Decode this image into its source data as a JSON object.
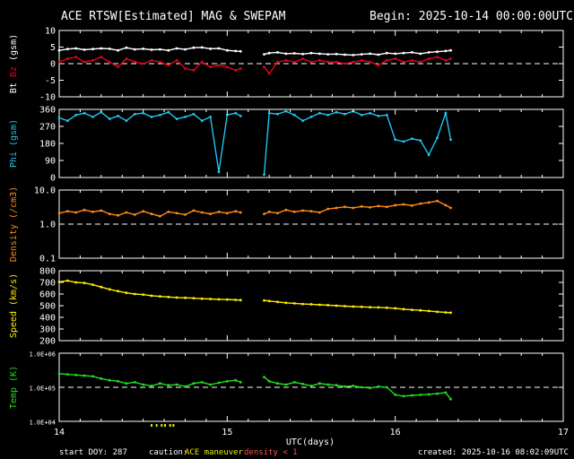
{
  "header": {
    "title": "ACE RTSW[Estimated] MAG & SWEPAM",
    "begin": "Begin: 2025-10-14 00:00:00UTC"
  },
  "footer": {
    "start_doy": "start DOY: 287",
    "caution_label": "caution:",
    "caution_maneuver": "ACE maneuver",
    "caution_density": "density < 1",
    "created": "created: 2025-10-16 08:02:09UTC",
    "xaxis_label": "UTC(days)"
  },
  "colors": {
    "bt": "#ffffff",
    "bz": "#e8001c",
    "phi": "#22c4ee",
    "density": "#ff8c1a",
    "speed": "#ffee00",
    "temp": "#22dd22",
    "frame": "#ffffff",
    "maneuver": "#e8e800",
    "density_warn": "#ff5050"
  },
  "chart_data": [
    {
      "type": "line",
      "id": "mag",
      "ylabel_parts": [
        "Bt",
        "Bz",
        "(gsm)"
      ],
      "yticks": [
        "10",
        "5",
        "0",
        "-5",
        "-10"
      ],
      "ylim": [
        -10,
        10
      ],
      "x": [
        14.0,
        14.05,
        14.1,
        14.15,
        14.2,
        14.25,
        14.3,
        14.35,
        14.4,
        14.45,
        14.5,
        14.55,
        14.6,
        14.65,
        14.7,
        14.75,
        14.8,
        14.85,
        14.9,
        14.95,
        15.0,
        15.05,
        15.08,
        15.22,
        15.25,
        15.3,
        15.35,
        15.4,
        15.45,
        15.5,
        15.55,
        15.6,
        15.65,
        15.7,
        15.75,
        15.8,
        15.85,
        15.9,
        15.95,
        16.0,
        16.05,
        16.1,
        16.15,
        16.2,
        16.25,
        16.3,
        16.33
      ],
      "series": [
        {
          "name": "Bt",
          "values": [
            4.0,
            4.4,
            4.6,
            4.2,
            4.4,
            4.6,
            4.5,
            4.0,
            4.8,
            4.3,
            4.5,
            4.2,
            4.3,
            4.0,
            4.6,
            4.3,
            4.8,
            4.9,
            4.5,
            4.6,
            4.0,
            3.8,
            3.7,
            2.8,
            3.2,
            3.4,
            3.0,
            3.1,
            2.9,
            3.2,
            3.0,
            2.8,
            2.9,
            2.7,
            2.6,
            2.8,
            3.0,
            2.7,
            3.2,
            3.0,
            3.2,
            3.4,
            3.0,
            3.4,
            3.6,
            3.8,
            4.0
          ]
        },
        {
          "name": "Bz",
          "values": [
            0.5,
            1.5,
            2.0,
            0.5,
            1.0,
            2.0,
            0.5,
            -1.0,
            1.5,
            0.5,
            0.0,
            1.0,
            0.5,
            -0.5,
            1.0,
            -1.5,
            -2.0,
            0.5,
            -1.0,
            -0.5,
            -1.0,
            -2.0,
            -1.5,
            -1.0,
            -3.0,
            0.5,
            1.0,
            0.5,
            1.5,
            0.5,
            1.0,
            0.5,
            0.5,
            0.0,
            0.5,
            1.0,
            0.5,
            -0.5,
            1.0,
            1.5,
            0.5,
            1.0,
            0.5,
            1.5,
            2.0,
            1.0,
            1.5
          ]
        }
      ],
      "dashed_at": 0
    },
    {
      "type": "scatter",
      "id": "phi",
      "ylabel_parts": [
        "Phi",
        "(gsm)"
      ],
      "yticks": [
        "360",
        "270",
        "180",
        "90",
        "0"
      ],
      "ylim": [
        0,
        360
      ],
      "x": [
        14.0,
        14.05,
        14.1,
        14.15,
        14.2,
        14.25,
        14.3,
        14.35,
        14.4,
        14.45,
        14.5,
        14.55,
        14.6,
        14.65,
        14.7,
        14.75,
        14.8,
        14.85,
        14.9,
        14.95,
        15.0,
        15.05,
        15.08,
        15.22,
        15.25,
        15.3,
        15.35,
        15.4,
        15.45,
        15.5,
        15.55,
        15.6,
        15.65,
        15.7,
        15.75,
        15.8,
        15.85,
        15.9,
        15.95,
        16.0,
        16.05,
        16.1,
        16.15,
        16.2,
        16.25,
        16.3,
        16.33
      ],
      "values": [
        315,
        300,
        330,
        340,
        320,
        345,
        310,
        325,
        300,
        335,
        340,
        320,
        330,
        345,
        310,
        320,
        335,
        300,
        320,
        30,
        330,
        340,
        325,
        15,
        340,
        335,
        350,
        330,
        300,
        320,
        340,
        330,
        345,
        335,
        350,
        330,
        340,
        325,
        330,
        200,
        190,
        205,
        195,
        120,
        210,
        340,
        200
      ]
    },
    {
      "type": "scatter",
      "id": "density",
      "ylabel_parts": [
        "Density",
        "(/cm3)"
      ],
      "yticks": [
        "10.0",
        "1.0",
        "0.1"
      ],
      "yscale": "log",
      "ylim": [
        0.1,
        10
      ],
      "x": [
        14.0,
        14.05,
        14.1,
        14.15,
        14.2,
        14.25,
        14.3,
        14.35,
        14.4,
        14.45,
        14.5,
        14.55,
        14.6,
        14.65,
        14.7,
        14.75,
        14.8,
        14.85,
        14.9,
        14.95,
        15.0,
        15.05,
        15.08,
        15.22,
        15.25,
        15.3,
        15.35,
        15.4,
        15.45,
        15.5,
        15.55,
        15.6,
        15.65,
        15.7,
        15.75,
        15.8,
        15.85,
        15.9,
        15.95,
        16.0,
        16.05,
        16.1,
        16.15,
        16.2,
        16.25,
        16.3,
        16.33
      ],
      "values": [
        2.1,
        2.4,
        2.2,
        2.6,
        2.3,
        2.5,
        2.0,
        1.8,
        2.2,
        1.9,
        2.4,
        2.0,
        1.7,
        2.3,
        2.1,
        1.9,
        2.5,
        2.2,
        2.0,
        2.3,
        2.1,
        2.4,
        2.2,
        2.0,
        2.3,
        2.1,
        2.6,
        2.3,
        2.5,
        2.4,
        2.2,
        2.8,
        3.0,
        3.2,
        3.0,
        3.3,
        3.1,
        3.4,
        3.2,
        3.6,
        3.8,
        3.5,
        4.0,
        4.3,
        4.8,
        3.6,
        3.0
      ],
      "dashed_at": 1.0
    },
    {
      "type": "scatter",
      "id": "speed",
      "ylabel_parts": [
        "Speed",
        "(km/s)"
      ],
      "yticks": [
        "800",
        "700",
        "600",
        "500",
        "400",
        "300",
        "200"
      ],
      "ylim": [
        200,
        800
      ],
      "x": [
        14.0,
        14.05,
        14.1,
        14.15,
        14.2,
        14.25,
        14.3,
        14.35,
        14.4,
        14.45,
        14.5,
        14.55,
        14.6,
        14.65,
        14.7,
        14.75,
        14.8,
        14.85,
        14.9,
        14.95,
        15.0,
        15.05,
        15.08,
        15.22,
        15.25,
        15.3,
        15.35,
        15.4,
        15.45,
        15.5,
        15.55,
        15.6,
        15.65,
        15.7,
        15.75,
        15.8,
        15.85,
        15.9,
        15.95,
        16.0,
        16.05,
        16.1,
        16.15,
        16.2,
        16.25,
        16.3,
        16.33
      ],
      "values": [
        705,
        715,
        700,
        695,
        680,
        660,
        640,
        625,
        610,
        600,
        595,
        585,
        580,
        575,
        570,
        568,
        565,
        560,
        558,
        555,
        553,
        550,
        548,
        545,
        540,
        532,
        525,
        520,
        515,
        512,
        508,
        505,
        500,
        496,
        492,
        490,
        487,
        485,
        482,
        478,
        470,
        465,
        460,
        455,
        448,
        442,
        440
      ]
    },
    {
      "type": "scatter",
      "id": "temp",
      "ylabel_parts": [
        "Temp",
        "(K)"
      ],
      "yticks": [
        "1.0E+06",
        "1.0E+05",
        "1.0E+04"
      ],
      "yscale": "log",
      "ylim": [
        10000,
        1000000
      ],
      "x": [
        14.0,
        14.05,
        14.1,
        14.15,
        14.2,
        14.25,
        14.3,
        14.35,
        14.4,
        14.45,
        14.5,
        14.55,
        14.6,
        14.65,
        14.7,
        14.75,
        14.8,
        14.85,
        14.9,
        14.95,
        15.0,
        15.05,
        15.08,
        15.22,
        15.25,
        15.3,
        15.35,
        15.4,
        15.45,
        15.5,
        15.55,
        15.6,
        15.65,
        15.7,
        15.75,
        15.8,
        15.85,
        15.9,
        15.95,
        16.0,
        16.05,
        16.1,
        16.15,
        16.2,
        16.25,
        16.3,
        16.33
      ],
      "values": [
        250000,
        240000,
        230000,
        220000,
        210000,
        180000,
        160000,
        150000,
        130000,
        140000,
        120000,
        110000,
        130000,
        115000,
        120000,
        105000,
        130000,
        140000,
        120000,
        135000,
        150000,
        160000,
        140000,
        200000,
        150000,
        130000,
        120000,
        140000,
        125000,
        110000,
        130000,
        120000,
        115000,
        105000,
        110000,
        100000,
        95000,
        105000,
        100000,
        60000,
        55000,
        58000,
        60000,
        62000,
        65000,
        70000,
        45000
      ],
      "dashed_at": 100000
    }
  ],
  "xaxis": {
    "ticks": [
      "14",
      "15",
      "16",
      "17"
    ],
    "range": [
      14,
      17
    ]
  },
  "maneuver_marks": [
    14.55,
    14.58,
    14.61,
    14.63,
    14.66,
    14.68
  ]
}
